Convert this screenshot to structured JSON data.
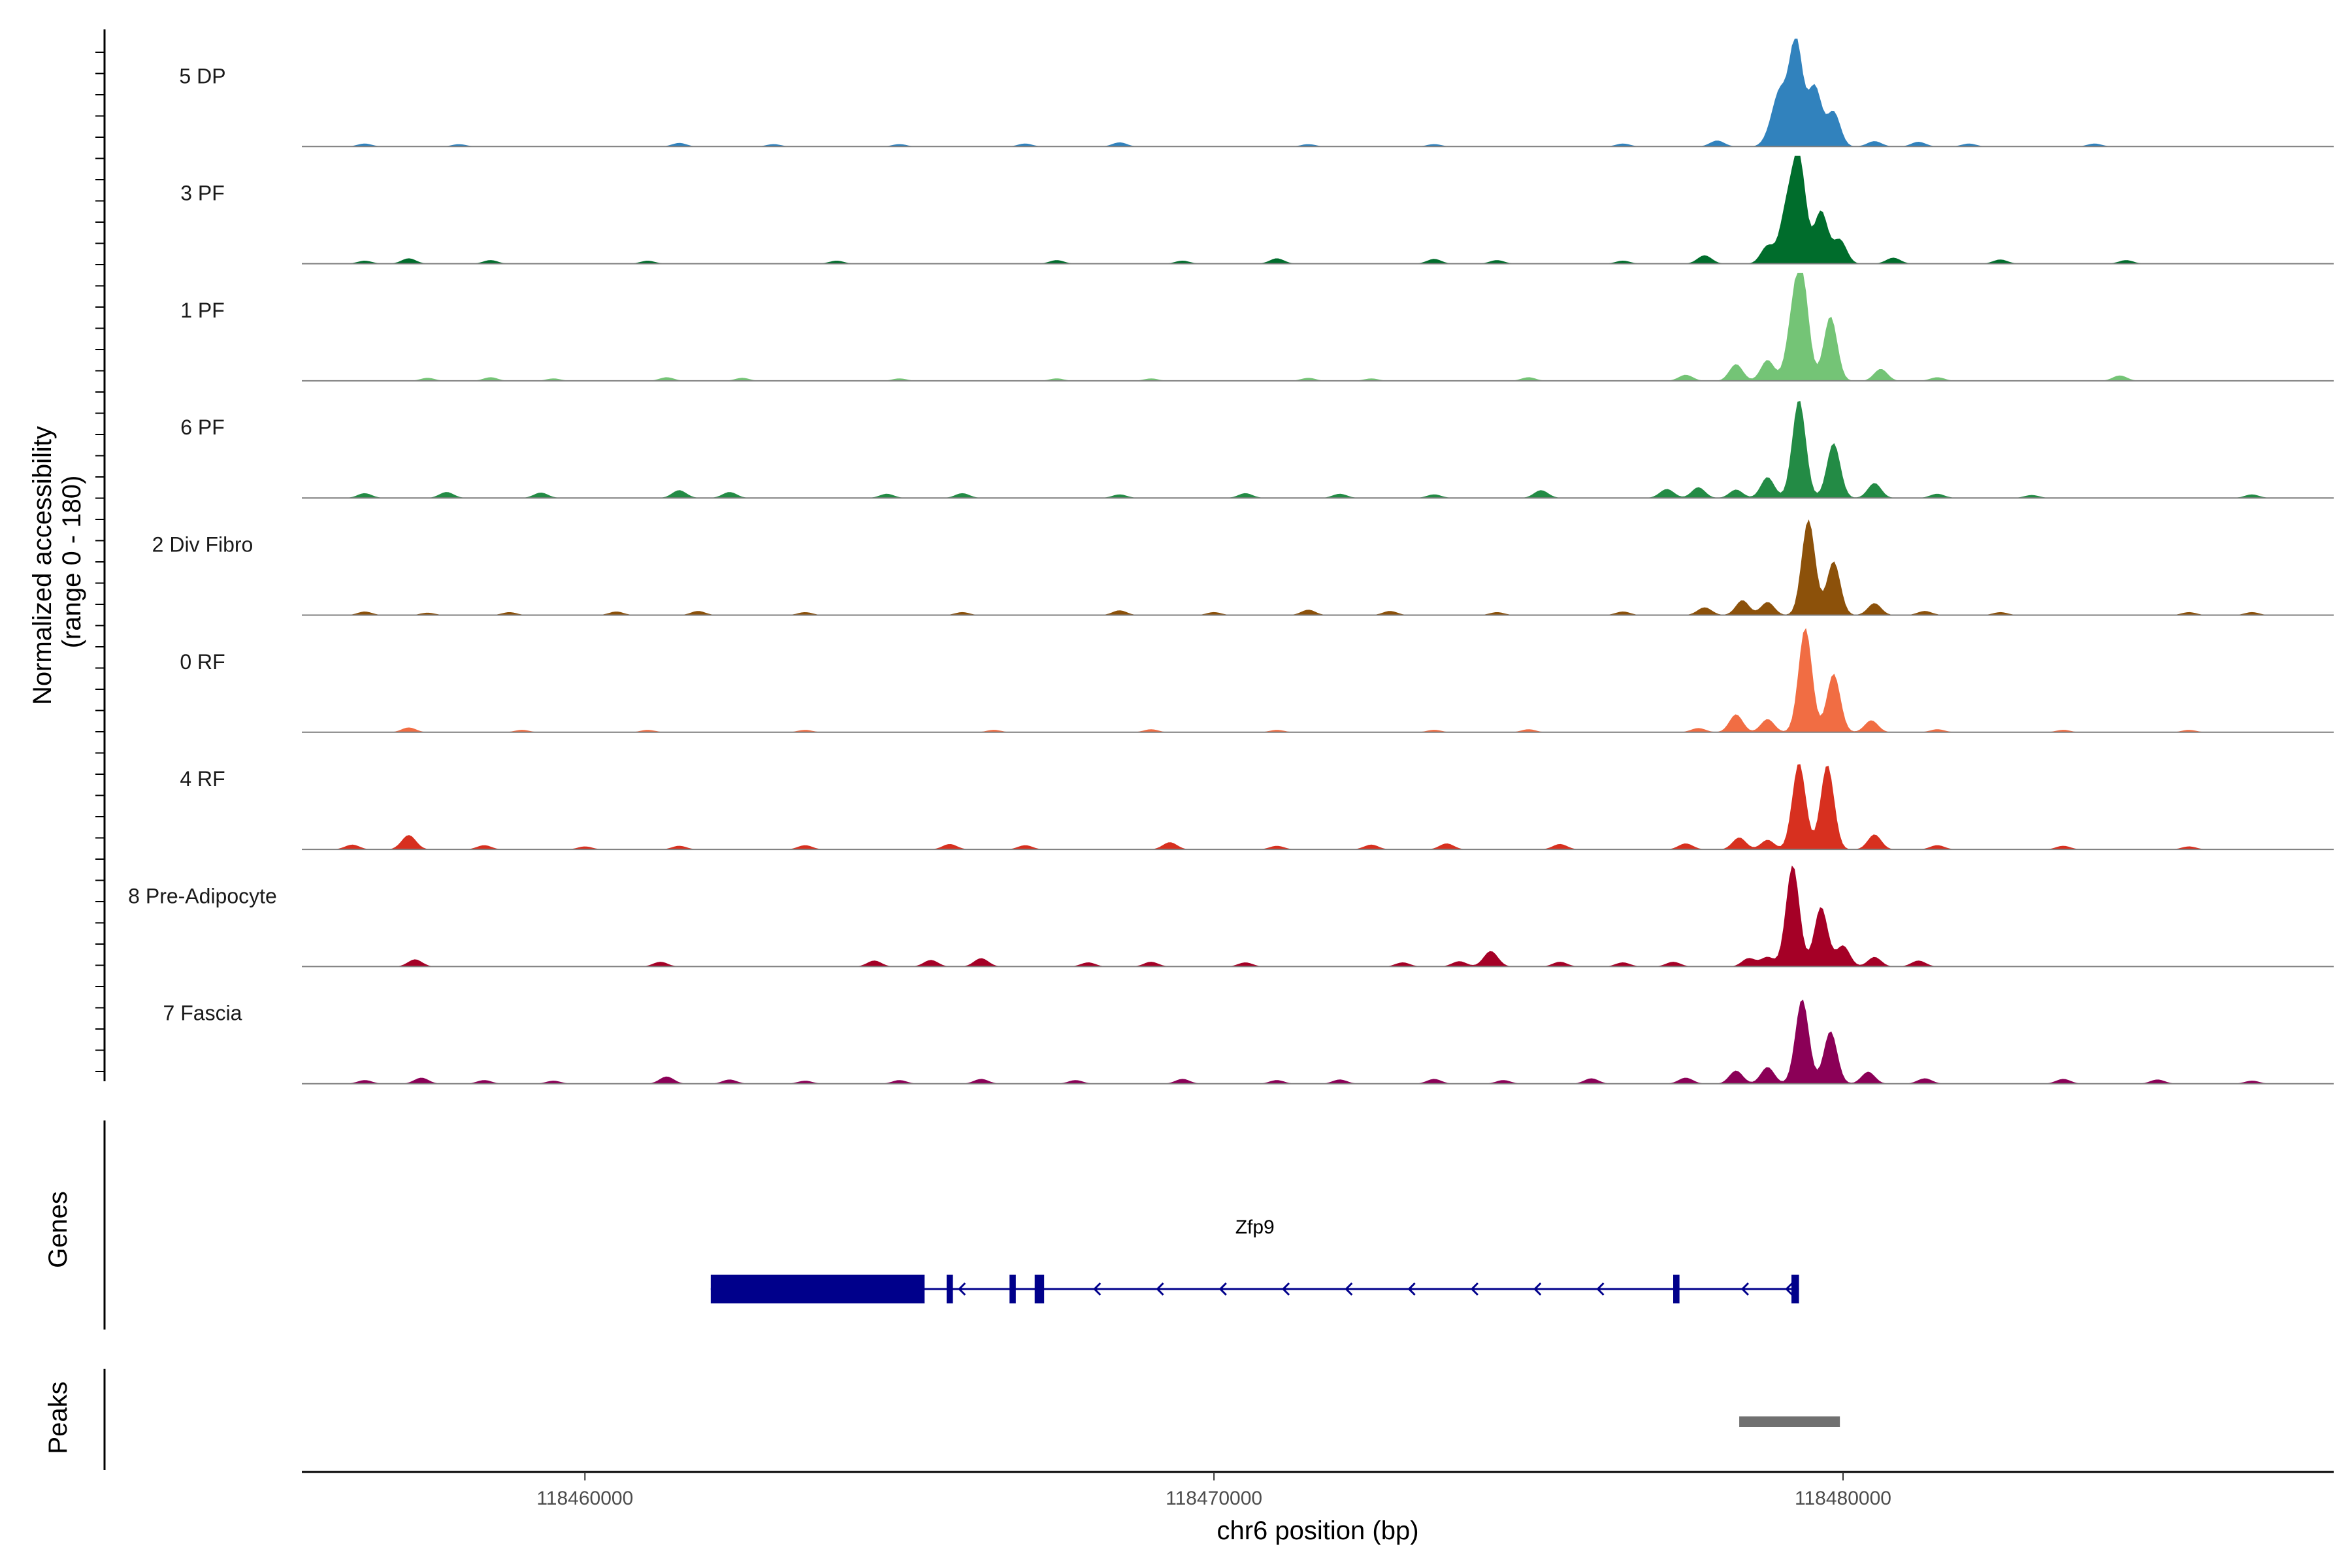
{
  "chart_data": {
    "type": "area",
    "title": "",
    "y_axis_title": [
      "Normalized accessibility",
      "(range 0 - 180)"
    ],
    "y_range": [
      0,
      180
    ],
    "x_axis_title": "chr6 position (bp)",
    "x_range": [
      118455500,
      118487800
    ],
    "x_ticks": [
      {
        "value": 118460000,
        "label": "118460000"
      },
      {
        "value": 118470000,
        "label": "118470000"
      },
      {
        "value": 118480000,
        "label": "118480000"
      }
    ],
    "tracks": [
      {
        "label": "5 DP",
        "color": "#3182bd",
        "peaks": [
          [
            118479000,
            82
          ],
          [
            118479250,
            180
          ],
          [
            118479550,
            100
          ],
          [
            118479850,
            58
          ],
          [
            118478850,
            20
          ]
        ],
        "bumps": [
          [
            118456500,
            5
          ],
          [
            118458000,
            4
          ],
          [
            118461500,
            6
          ],
          [
            118463000,
            4
          ],
          [
            118465000,
            4
          ],
          [
            118467000,
            5
          ],
          [
            118468500,
            7
          ],
          [
            118471500,
            4
          ],
          [
            118473500,
            4
          ],
          [
            118476500,
            5
          ],
          [
            118478000,
            10
          ],
          [
            118480500,
            9
          ],
          [
            118481200,
            8
          ],
          [
            118482000,
            5
          ],
          [
            118484000,
            5
          ]
        ]
      },
      {
        "label": "3 PF",
        "color": "#006d2c",
        "peaks": [
          [
            118478800,
            30
          ],
          [
            118479100,
            85
          ],
          [
            118479300,
            175
          ],
          [
            118479650,
            88
          ],
          [
            118479950,
            40
          ]
        ],
        "bumps": [
          [
            118456500,
            5
          ],
          [
            118457200,
            9
          ],
          [
            118458500,
            6
          ],
          [
            118461000,
            5
          ],
          [
            118464000,
            5
          ],
          [
            118467500,
            6
          ],
          [
            118469500,
            5
          ],
          [
            118471000,
            9
          ],
          [
            118473500,
            8
          ],
          [
            118474500,
            6
          ],
          [
            118476500,
            5
          ],
          [
            118477800,
            14
          ],
          [
            118480800,
            10
          ],
          [
            118482500,
            7
          ],
          [
            118484500,
            6
          ]
        ]
      },
      {
        "label": "1 PF",
        "color": "#74c476",
        "peaks": [
          [
            118478300,
            28
          ],
          [
            118478800,
            35
          ],
          [
            118479200,
            85
          ],
          [
            118479350,
            162
          ],
          [
            118479800,
            108
          ],
          [
            118480600,
            20
          ]
        ],
        "bumps": [
          [
            118457500,
            5
          ],
          [
            118458500,
            6
          ],
          [
            118459500,
            4
          ],
          [
            118461300,
            6
          ],
          [
            118462500,
            5
          ],
          [
            118465000,
            4
          ],
          [
            118467500,
            4
          ],
          [
            118469000,
            4
          ],
          [
            118471500,
            5
          ],
          [
            118472500,
            4
          ],
          [
            118475000,
            6
          ],
          [
            118477500,
            10
          ],
          [
            118481500,
            6
          ],
          [
            118484400,
            9
          ]
        ]
      },
      {
        "label": "6 PF",
        "color": "#238b45",
        "peaks": [
          [
            118477700,
            18
          ],
          [
            118478300,
            14
          ],
          [
            118478800,
            35
          ],
          [
            118479300,
            165
          ],
          [
            118479850,
            92
          ],
          [
            118480500,
            25
          ]
        ],
        "bumps": [
          [
            118456500,
            8
          ],
          [
            118457800,
            10
          ],
          [
            118459300,
            9
          ],
          [
            118461500,
            13
          ],
          [
            118462300,
            10
          ],
          [
            118464800,
            7
          ],
          [
            118466000,
            8
          ],
          [
            118468500,
            6
          ],
          [
            118470500,
            8
          ],
          [
            118472000,
            7
          ],
          [
            118473500,
            6
          ],
          [
            118475200,
            13
          ],
          [
            118477200,
            15
          ],
          [
            118481500,
            7
          ],
          [
            118483000,
            5
          ],
          [
            118486500,
            6
          ]
        ]
      },
      {
        "label": "2 Div Fibro",
        "color": "#8c510a",
        "peaks": [
          [
            118478400,
            25
          ],
          [
            118478800,
            22
          ],
          [
            118479450,
            160
          ],
          [
            118479850,
            90
          ],
          [
            118480500,
            20
          ]
        ],
        "bumps": [
          [
            118456500,
            6
          ],
          [
            118457500,
            4
          ],
          [
            118458800,
            5
          ],
          [
            118460500,
            6
          ],
          [
            118461800,
            7
          ],
          [
            118463500,
            5
          ],
          [
            118466000,
            5
          ],
          [
            118468500,
            8
          ],
          [
            118470000,
            5
          ],
          [
            118471500,
            9
          ],
          [
            118472800,
            7
          ],
          [
            118474500,
            5
          ],
          [
            118476500,
            6
          ],
          [
            118477800,
            13
          ],
          [
            118481300,
            7
          ],
          [
            118482500,
            5
          ],
          [
            118485500,
            5
          ],
          [
            118486500,
            5
          ]
        ]
      },
      {
        "label": "0 RF",
        "color": "#f16d43",
        "peaks": [
          [
            118478300,
            30
          ],
          [
            118478800,
            22
          ],
          [
            118479400,
            175
          ],
          [
            118479850,
            98
          ],
          [
            118480450,
            20
          ]
        ],
        "bumps": [
          [
            118457200,
            8
          ],
          [
            118459000,
            4
          ],
          [
            118461000,
            4
          ],
          [
            118463500,
            4
          ],
          [
            118466500,
            4
          ],
          [
            118469000,
            5
          ],
          [
            118471000,
            4
          ],
          [
            118473500,
            4
          ],
          [
            118475000,
            5
          ],
          [
            118477700,
            7
          ],
          [
            118481500,
            5
          ],
          [
            118483500,
            4
          ],
          [
            118485500,
            4
          ]
        ]
      },
      {
        "label": "4 RF",
        "color": "#d7301f",
        "peaks": [
          [
            118478350,
            20
          ],
          [
            118478800,
            16
          ],
          [
            118479300,
            145
          ],
          [
            118479750,
            142
          ],
          [
            118480500,
            25
          ]
        ],
        "bumps": [
          [
            118456300,
            8
          ],
          [
            118457200,
            24
          ],
          [
            118458400,
            7
          ],
          [
            118460000,
            5
          ],
          [
            118461500,
            6
          ],
          [
            118463500,
            7
          ],
          [
            118465800,
            9
          ],
          [
            118467000,
            7
          ],
          [
            118469300,
            12
          ],
          [
            118471000,
            6
          ],
          [
            118472500,
            8
          ],
          [
            118473700,
            10
          ],
          [
            118475500,
            9
          ],
          [
            118477500,
            10
          ],
          [
            118481500,
            7
          ],
          [
            118483500,
            6
          ],
          [
            118485500,
            5
          ]
        ]
      },
      {
        "label": "8 Pre-Adipocyte",
        "color": "#a50026",
        "peaks": [
          [
            118478500,
            14
          ],
          [
            118478800,
            16
          ],
          [
            118479200,
            170
          ],
          [
            118479650,
            100
          ],
          [
            118480000,
            35
          ],
          [
            118480500,
            16
          ]
        ],
        "bumps": [
          [
            118457300,
            12
          ],
          [
            118461200,
            8
          ],
          [
            118464600,
            10
          ],
          [
            118465500,
            11
          ],
          [
            118466300,
            14
          ],
          [
            118468000,
            7
          ],
          [
            118469000,
            8
          ],
          [
            118470500,
            7
          ],
          [
            118473000,
            7
          ],
          [
            118473900,
            9
          ],
          [
            118474400,
            26
          ],
          [
            118475500,
            8
          ],
          [
            118476500,
            7
          ],
          [
            118477300,
            8
          ],
          [
            118481200,
            10
          ]
        ]
      },
      {
        "label": "7 Fascia",
        "color": "#8b0057",
        "peaks": [
          [
            118478300,
            22
          ],
          [
            118478800,
            28
          ],
          [
            118479350,
            142
          ],
          [
            118479800,
            88
          ],
          [
            118480400,
            20
          ]
        ],
        "bumps": [
          [
            118456500,
            6
          ],
          [
            118457400,
            10
          ],
          [
            118458400,
            6
          ],
          [
            118459500,
            5
          ],
          [
            118461300,
            12
          ],
          [
            118462300,
            7
          ],
          [
            118463500,
            5
          ],
          [
            118465000,
            6
          ],
          [
            118466300,
            8
          ],
          [
            118467800,
            6
          ],
          [
            118469500,
            8
          ],
          [
            118471000,
            6
          ],
          [
            118472000,
            7
          ],
          [
            118473500,
            8
          ],
          [
            118474600,
            6
          ],
          [
            118476000,
            9
          ],
          [
            118477500,
            10
          ],
          [
            118481300,
            9
          ],
          [
            118483500,
            8
          ],
          [
            118485000,
            7
          ],
          [
            118486500,
            5
          ]
        ]
      }
    ],
    "genes_title": "Genes",
    "gene": {
      "name": "Zfp9",
      "strand": "-",
      "color": "#00008b",
      "start": 118462000,
      "end": 118479300,
      "exons": [
        [
          118462000,
          118465400
        ],
        [
          118465750,
          118465850
        ],
        [
          118466750,
          118466850
        ],
        [
          118467150,
          118467300
        ],
        [
          118477300,
          118477400
        ],
        [
          118479180,
          118479300
        ]
      ],
      "arrow_positions": [
        118465950,
        118468100,
        118469100,
        118470100,
        118471100,
        118472100,
        118473100,
        118474100,
        118475100,
        118476100,
        118478400,
        118479100
      ]
    },
    "peaks_title": "Peaks",
    "peak_regions": [
      [
        118478350,
        118479950
      ]
    ],
    "peak_color": "#707070"
  }
}
